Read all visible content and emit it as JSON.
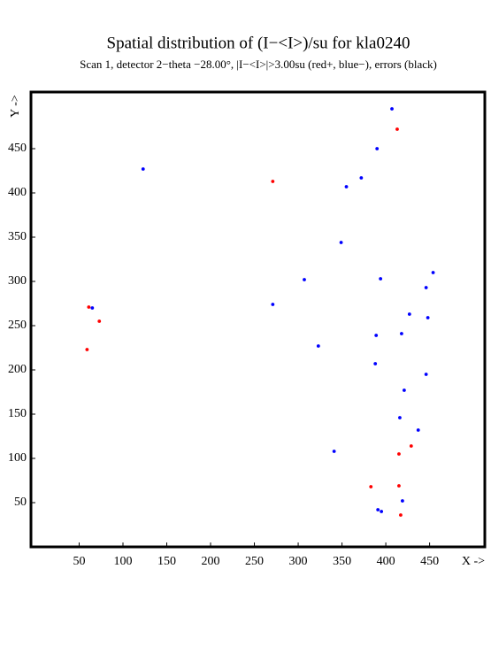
{
  "chart_data": {
    "type": "scatter",
    "title": "Spatial distribution of (I−<I>)/su for kla0240",
    "subtitle": "Scan  1, detector 2−theta −28.00°, |I−<I>|>3.00su (red+, blue−), errors (black)",
    "x_label": "X ->",
    "y_label": "Y ->",
    "xlim": [
      -5,
      513
    ],
    "ylim": [
      0,
      514
    ],
    "xticks": [
      50,
      100,
      150,
      200,
      250,
      300,
      350,
      400,
      450
    ],
    "yticks": [
      50,
      100,
      150,
      200,
      250,
      300,
      350,
      400,
      450
    ],
    "grid": false,
    "series": [
      {
        "color": "#0000ff",
        "x": [
          407,
          390,
          123,
          372,
          355,
          349,
          454,
          307,
          394,
          446,
          427,
          448,
          271,
          65,
          418,
          389,
          323,
          388,
          446,
          421,
          416,
          437,
          341,
          419,
          391,
          395
        ],
        "values": [
          495,
          450,
          427,
          417,
          407,
          344,
          310,
          302,
          303,
          293,
          263,
          259,
          274,
          270,
          241,
          239,
          227,
          207,
          195,
          177,
          146,
          132,
          108,
          52,
          42,
          40
        ]
      },
      {
        "color": "#ff0000",
        "x": [
          413,
          271,
          61,
          73,
          59,
          415,
          429,
          383,
          415,
          417
        ],
        "values": [
          472,
          413,
          271,
          255,
          223,
          105,
          114,
          68,
          69,
          36
        ]
      }
    ]
  }
}
